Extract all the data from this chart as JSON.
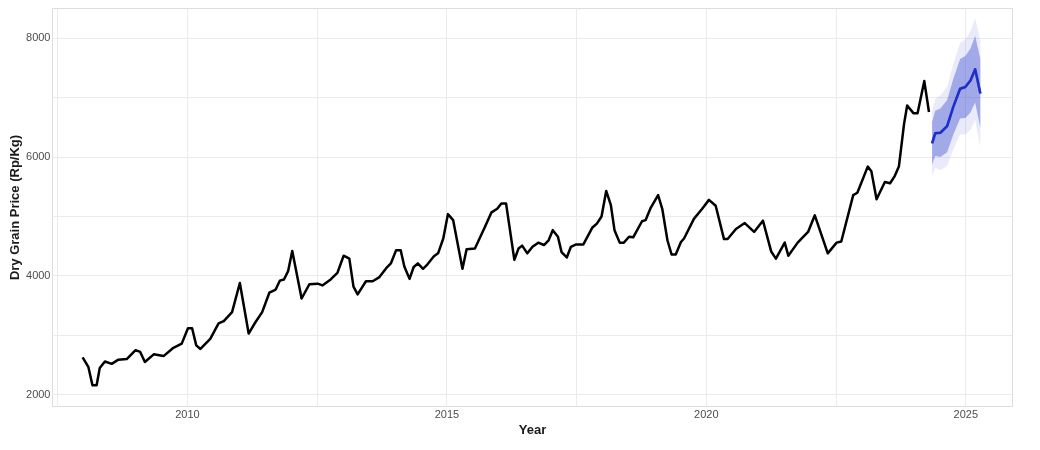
{
  "chart_data": {
    "type": "line",
    "xlabel": "Year",
    "ylabel": "Dry Grain Price (Rp/Kg)",
    "xlim": [
      2007.4,
      2025.9
    ],
    "ylim": [
      1800,
      8500
    ],
    "xticks": [
      {
        "value": 2007.5,
        "label": null
      },
      2010,
      {
        "value": 2012.5,
        "label": null
      },
      2015,
      {
        "value": 2017.5,
        "label": null
      },
      2020,
      {
        "value": 2022.5,
        "label": null
      },
      2025
    ],
    "yticks": [
      2000,
      {
        "value": 3000,
        "label": null
      },
      4000,
      {
        "value": 5000,
        "label": null
      },
      6000,
      {
        "value": 7000,
        "label": null
      },
      8000
    ],
    "grid": true,
    "marker": "none",
    "line_style": "solid",
    "series": [
      {
        "color": "#000000",
        "x": [
          2007.99,
          2008.1,
          2008.18,
          2008.26,
          2008.32,
          2008.42,
          2008.55,
          2008.68,
          2008.84,
          2009.01,
          2009.1,
          2009.19,
          2009.36,
          2009.55,
          2009.74,
          2009.9,
          2010.02,
          2010.1,
          2010.18,
          2010.26,
          2010.45,
          2010.61,
          2010.71,
          2010.87,
          2011.02,
          2011.19,
          2011.32,
          2011.45,
          2011.59,
          2011.71,
          2011.79,
          2011.87,
          2011.95,
          2012.03,
          2012.21,
          2012.36,
          2012.52,
          2012.61,
          2012.77,
          2012.9,
          2013.02,
          2013.13,
          2013.21,
          2013.29,
          2013.45,
          2013.58,
          2013.71,
          2013.84,
          2013.93,
          2014.03,
          2014.12,
          2014.19,
          2014.29,
          2014.37,
          2014.45,
          2014.55,
          2014.64,
          2014.76,
          2014.84,
          2014.94,
          2015.03,
          2015.13,
          2015.31,
          2015.39,
          2015.55,
          2015.74,
          2015.87,
          2015.98,
          2016.06,
          2016.15,
          2016.31,
          2016.39,
          2016.46,
          2016.56,
          2016.66,
          2016.77,
          2016.88,
          2016.97,
          2017.05,
          2017.15,
          2017.22,
          2017.32,
          2017.4,
          2017.5,
          2017.64,
          2017.81,
          2017.9,
          2017.99,
          2018.08,
          2018.17,
          2018.24,
          2018.34,
          2018.42,
          2018.52,
          2018.6,
          2018.77,
          2018.84,
          2018.94,
          2019.08,
          2019.16,
          2019.26,
          2019.34,
          2019.42,
          2019.52,
          2019.58,
          2019.77,
          2019.93,
          2020.06,
          2020.19,
          2020.35,
          2020.42,
          2020.58,
          2020.75,
          2020.93,
          2021.1,
          2021.26,
          2021.35,
          2021.52,
          2021.59,
          2021.77,
          2021.97,
          2022.1,
          2022.35,
          2022.52,
          2022.61,
          2022.84,
          2022.92,
          2023.12,
          2023.19,
          2023.29,
          2023.45,
          2023.55,
          2023.64,
          2023.72,
          2023.82,
          2023.88,
          2024.0,
          2024.08,
          2024.21,
          2024.3
        ],
        "values": [
          2620,
          2460,
          2150,
          2150,
          2440,
          2550,
          2510,
          2580,
          2590,
          2740,
          2710,
          2540,
          2670,
          2640,
          2780,
          2850,
          3110,
          3110,
          2820,
          2760,
          2930,
          3190,
          3230,
          3380,
          3870,
          3020,
          3210,
          3380,
          3710,
          3760,
          3910,
          3930,
          4070,
          4410,
          3610,
          3850,
          3860,
          3830,
          3930,
          4040,
          4330,
          4280,
          3810,
          3680,
          3900,
          3900,
          3970,
          4120,
          4200,
          4420,
          4420,
          4150,
          3940,
          4140,
          4200,
          4110,
          4190,
          4320,
          4370,
          4620,
          5030,
          4930,
          4110,
          4440,
          4450,
          4810,
          5060,
          5120,
          5210,
          5210,
          4260,
          4450,
          4500,
          4370,
          4480,
          4550,
          4510,
          4590,
          4760,
          4650,
          4390,
          4300,
          4480,
          4520,
          4520,
          4800,
          4870,
          4990,
          5420,
          5180,
          4760,
          4550,
          4550,
          4650,
          4640,
          4910,
          4930,
          5140,
          5350,
          5120,
          4590,
          4350,
          4350,
          4560,
          4620,
          4950,
          5120,
          5270,
          5170,
          4610,
          4610,
          4780,
          4880,
          4730,
          4920,
          4400,
          4280,
          4550,
          4330,
          4550,
          4730,
          5010,
          4370,
          4550,
          4570,
          5350,
          5390,
          5830,
          5750,
          5280,
          5570,
          5550,
          5670,
          5830,
          6550,
          6860,
          6730,
          6730,
          7270,
          6750
        ]
      },
      {
        "color": "#6d78e0",
        "x": [
          2024.36,
          2024.42,
          2024.52,
          2024.65,
          2024.77,
          2024.9,
          2025.0,
          2025.1,
          2025.19,
          2025.29
        ],
        "values": [
          6220,
          6390,
          6400,
          6510,
          6840,
          7140,
          7170,
          7280,
          7470,
          7060
        ],
        "lower": [
          5670,
          5810,
          5770,
          5840,
          6120,
          6370,
          6370,
          6450,
          6610,
          6170
        ],
        "upper": [
          6770,
          6970,
          7030,
          7180,
          7560,
          7910,
          7970,
          8110,
          8330,
          7950
        ]
      },
      {
        "color": "#1e2ec8",
        "x": [
          2024.36,
          2024.42,
          2024.52,
          2024.65,
          2024.77,
          2024.9,
          2025.0,
          2025.1,
          2025.19,
          2025.29
        ],
        "values": [
          6220,
          6390,
          6400,
          6510,
          6840,
          7140,
          7170,
          7280,
          7470,
          7060
        ],
        "lower": [
          5860,
          6010,
          5990,
          6070,
          6370,
          6640,
          6650,
          6740,
          6910,
          6480
        ],
        "upper": [
          6580,
          6770,
          6810,
          6950,
          7310,
          7640,
          7690,
          7820,
          8030,
          7640
        ]
      }
    ]
  }
}
